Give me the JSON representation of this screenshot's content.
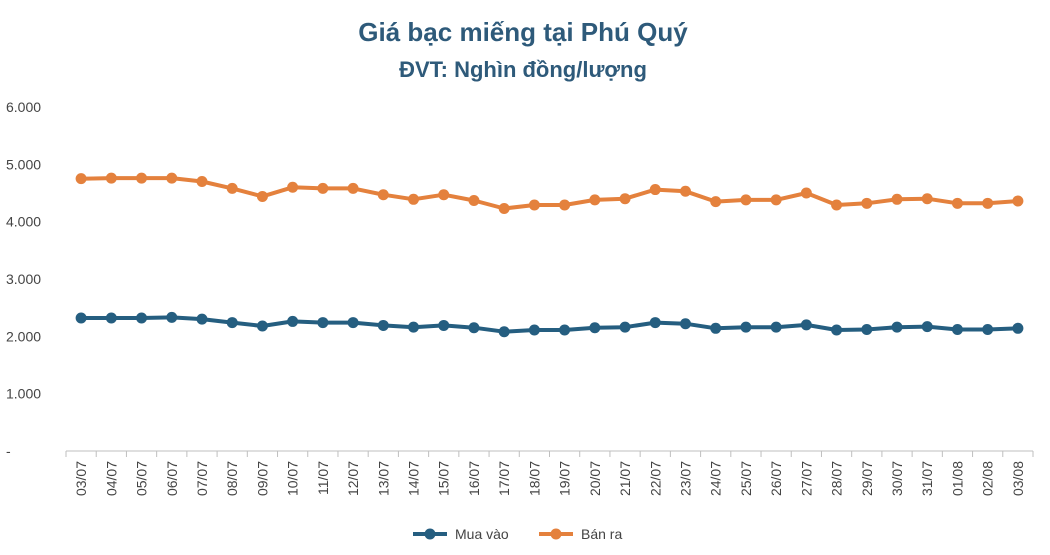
{
  "chart_data": {
    "type": "line",
    "title": "Giá bạc miếng tại Phú Quý",
    "subtitle": "ĐVT: Nghìn đồng/lượng",
    "categories": [
      "03/07",
      "04/07",
      "05/07",
      "06/07",
      "07/07",
      "08/07",
      "09/07",
      "10/07",
      "11/07",
      "12/07",
      "13/07",
      "14/07",
      "15/07",
      "16/07",
      "17/07",
      "18/07",
      "19/07",
      "20/07",
      "21/07",
      "22/07",
      "23/07",
      "24/07",
      "25/07",
      "26/07",
      "27/07",
      "28/07",
      "29/07",
      "30/07",
      "31/07",
      "01/08",
      "02/08",
      "03/08"
    ],
    "ylim": [
      0,
      6000
    ],
    "yticks": [
      0,
      1000,
      2000,
      3000,
      4000,
      5000,
      6000
    ],
    "ytick_labels": [
      "-",
      "1.000",
      "2.000",
      "3.000",
      "4.000",
      "5.000",
      "6.000"
    ],
    "grid": false,
    "legend": "bottom",
    "series": [
      {
        "name": "Mua vào",
        "color": "#255e80",
        "values": [
          2320,
          2320,
          2320,
          2330,
          2300,
          2240,
          2180,
          2260,
          2240,
          2240,
          2190,
          2160,
          2190,
          2150,
          2080,
          2110,
          2110,
          2150,
          2160,
          2240,
          2220,
          2140,
          2160,
          2160,
          2200,
          2110,
          2120,
          2160,
          2170,
          2120,
          2120,
          2140
        ]
      },
      {
        "name": "Bán ra",
        "color": "#e4813d",
        "values": [
          4750,
          4760,
          4760,
          4760,
          4700,
          4580,
          4440,
          4600,
          4580,
          4580,
          4470,
          4390,
          4470,
          4370,
          4230,
          4290,
          4290,
          4380,
          4400,
          4560,
          4530,
          4350,
          4380,
          4380,
          4500,
          4290,
          4320,
          4390,
          4400,
          4320,
          4320,
          4360
        ]
      }
    ]
  }
}
